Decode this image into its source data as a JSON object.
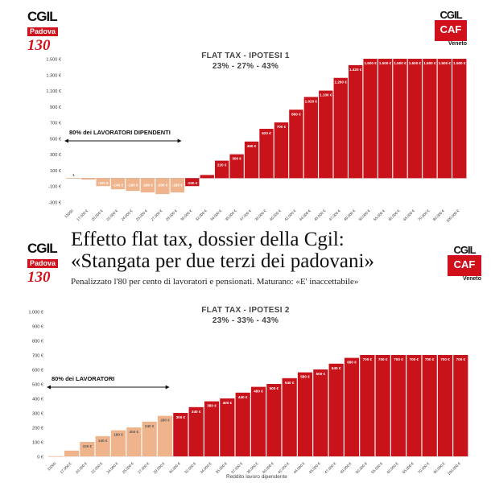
{
  "logos": {
    "left_name": "CGIL",
    "left_city": "Padova",
    "left_anniversary": "130",
    "right_name": "CGIL",
    "right_box": "CAF",
    "right_region": "Veneto"
  },
  "article": {
    "headline_line1": "Effetto flat tax, dossier della Cgil:",
    "headline_line2": "«Stangata per due terzi dei padovani»",
    "subheadline": "Penalizzato l'80 per cento di lavoratori e pensionati. Maturano: «E' inaccettabile»"
  },
  "colors": {
    "gain": "#c9131b",
    "loss": "#f0b48c",
    "logo_red": "#d0101a"
  },
  "chart_data": [
    {
      "type": "bar",
      "title": "FLAT TAX - IPOTESI 1",
      "subtitle": "23% - 27% - 43%",
      "annotation": "80% dei LAVORATORI DIPENDENTI",
      "xlabel": "",
      "ylim": [
        -300,
        1500
      ],
      "yticks": [
        -300,
        -100,
        100,
        300,
        500,
        700,
        900,
        1100,
        1300,
        1500
      ],
      "ytick_labels": [
        "-300 €",
        "-100 €",
        "100 €",
        "300 €",
        "500 €",
        "700 €",
        "900 €",
        "1.100 €",
        "1.300 €",
        "1.500 €"
      ],
      "grid": false,
      "categories": [
        "13000",
        "17.000 €",
        "20.000 €",
        "22.000 €",
        "24.000 €",
        "25.000 €",
        "27.000 €",
        "29.000 €",
        "30.000 €",
        "32.000 €",
        "34.000 €",
        "35.000 €",
        "37.000 €",
        "39.000 €",
        "40.000 €",
        "42.000 €",
        "44.000 €",
        "45.000 €",
        "47.000 €",
        "49.000 €",
        "50.000 €",
        "55.000 €",
        "60.000 €",
        "65.000 €",
        "70.000 €",
        "80.000 €",
        "100.000 €"
      ],
      "values": [
        1,
        -18,
        -100,
        -140,
        -160,
        -180,
        -200,
        -180,
        -100,
        40,
        220,
        300,
        460,
        620,
        700,
        860,
        1020,
        1100,
        1260,
        1420,
        1500,
        1500,
        1500,
        1500,
        1500,
        1500,
        1500
      ],
      "value_labels": [
        "1",
        "-18 €",
        "-100 €",
        "-140 €",
        "-160 €",
        "-180 €",
        "-200 €",
        "-180 €",
        "-100 €",
        "",
        "220 €",
        "300 €",
        "460 €",
        "620 €",
        "700 €",
        "860 €",
        "1.020 €",
        "1.100 €",
        "1.260 €",
        "1.420 €",
        "1.500 €",
        "1.500 €",
        "1.500 €",
        "1.500 €",
        "1.500 €",
        "1.500 €",
        "1.500 €"
      ],
      "highlight_count": 8
    },
    {
      "type": "bar",
      "title": "FLAT TAX - IPOTESI 2",
      "subtitle": "23% - 33% - 43%",
      "annotation": "80% dei LAVORATORI",
      "xlabel": "Reddito lavoro dipendente",
      "ylim": [
        0,
        1000
      ],
      "yticks": [
        0,
        100,
        200,
        300,
        400,
        500,
        600,
        700,
        800,
        900,
        1000
      ],
      "ytick_labels": [
        "0 €",
        "100 €",
        "200 €",
        "300 €",
        "400 €",
        "500 €",
        "600 €",
        "700 €",
        "800 €",
        "900 €",
        "1.000 €"
      ],
      "grid": false,
      "categories": [
        "13000",
        "17.000 €",
        "20.000 €",
        "22.000 €",
        "24.000 €",
        "25.000 €",
        "27.000 €",
        "29.000 €",
        "30.000 €",
        "32.000 €",
        "34.000 €",
        "35.000 €",
        "37.000 €",
        "39.000 €",
        "40.000 €",
        "42.000 €",
        "44.000 €",
        "45.000 €",
        "47.000 €",
        "49.000 €",
        "50.000 €",
        "55.000 €",
        "60.000 €",
        "65.000 €",
        "70.000 €",
        "80.000 €",
        "100.000 €"
      ],
      "values": [
        0,
        40,
        100,
        140,
        180,
        200,
        240,
        280,
        300,
        340,
        380,
        400,
        440,
        480,
        500,
        540,
        580,
        600,
        640,
        680,
        700,
        700,
        700,
        700,
        700,
        700,
        700
      ],
      "value_labels": [
        "",
        "",
        "100 €",
        "140 €",
        "180 €",
        "200 €",
        "240 €",
        "280 €",
        "300 €",
        "340 €",
        "380 €",
        "400 €",
        "440 €",
        "480 €",
        "500 €",
        "540 €",
        "580 €",
        "600 €",
        "640 €",
        "680 €",
        "700 €",
        "700 €",
        "700 €",
        "700 €",
        "700 €",
        "700 €",
        "700 €"
      ],
      "highlight_count": 8
    }
  ]
}
